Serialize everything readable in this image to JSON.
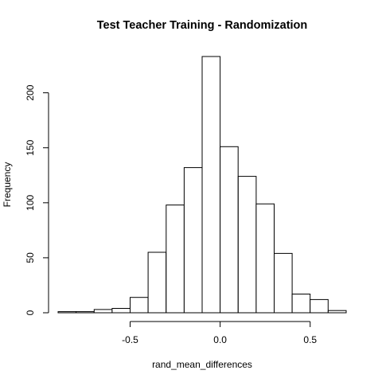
{
  "chart_data": {
    "type": "histogram",
    "title": "Test Teacher Training - Randomization",
    "xlabel": "rand_mean_differences",
    "ylabel": "Frequency",
    "xlim": [
      -0.9,
      0.7
    ],
    "ylim": [
      0,
      233
    ],
    "x_ticks": [
      -0.5,
      0.0,
      0.5
    ],
    "x_tick_labels": [
      "-0.5",
      "0.0",
      "0.5"
    ],
    "y_ticks": [
      0,
      50,
      100,
      150,
      200
    ],
    "y_tick_labels": [
      "0",
      "50",
      "100",
      "150",
      "200"
    ],
    "bin_edges": [
      -0.9,
      -0.8,
      -0.7,
      -0.6,
      -0.5,
      -0.4,
      -0.3,
      -0.2,
      -0.1,
      0.0,
      0.1,
      0.2,
      0.3,
      0.4,
      0.5,
      0.6,
      0.7
    ],
    "counts": [
      1,
      1,
      3,
      4,
      14,
      55,
      98,
      132,
      233,
      151,
      124,
      99,
      54,
      17,
      12,
      2
    ]
  }
}
